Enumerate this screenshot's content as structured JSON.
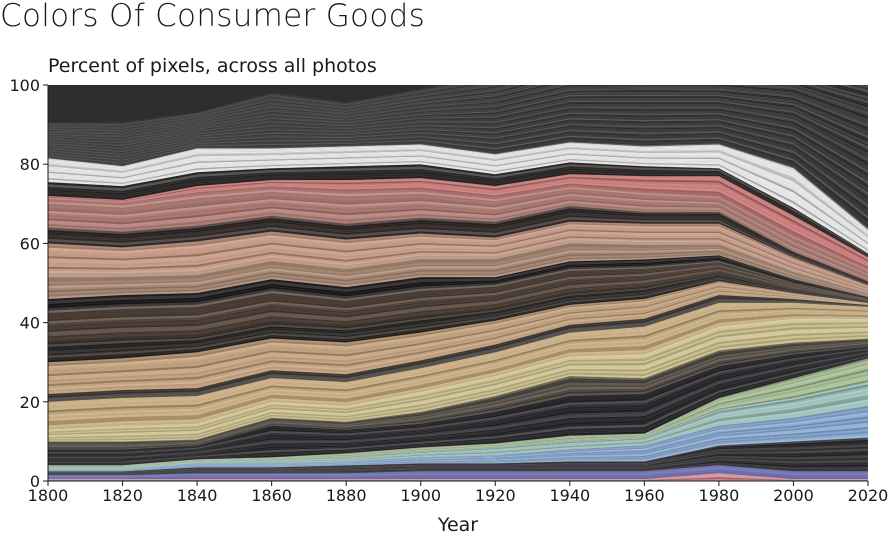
{
  "chart_data": {
    "type": "area",
    "stacked": true,
    "title": "Colors Of Consumer Goods",
    "subtitle": "Percent of pixels, across all photos",
    "xlabel": "Year",
    "ylabel": "",
    "x": [
      1800,
      1820,
      1840,
      1860,
      1880,
      1900,
      1920,
      1940,
      1960,
      1980,
      2000,
      2020
    ],
    "xticks": [
      "1800",
      "1820",
      "1840",
      "1860",
      "1880",
      "1900",
      "1920",
      "1940",
      "1960",
      "1980",
      "2000",
      "2020"
    ],
    "yticks": [
      "0",
      "20",
      "40",
      "60",
      "80",
      "100"
    ],
    "xlim": [
      1800,
      2020
    ],
    "ylim": [
      0,
      100
    ],
    "grid": false,
    "legend": "none",
    "bands": [
      {
        "color": "#d98a92",
        "values": [
          0.5,
          0.5,
          0.5,
          0.5,
          0.5,
          0.5,
          0.5,
          0.5,
          0.5,
          2,
          0.5,
          0.5
        ]
      },
      {
        "color": "#7a7dbf",
        "values": [
          1,
          1,
          1.5,
          1.5,
          1.5,
          2,
          2,
          2,
          2,
          2,
          2,
          2
        ]
      },
      {
        "color": "#2c2c2e",
        "values": [
          1,
          1,
          1.5,
          1.5,
          2,
          2,
          2,
          2.5,
          2.5,
          5,
          7.5,
          8.5
        ]
      },
      {
        "color": "#86a9d4",
        "values": [
          0.5,
          0.5,
          1,
          1,
          1,
          1.5,
          2,
          3,
          4,
          5,
          6,
          8
        ]
      },
      {
        "color": "#9ec5bd",
        "values": [
          0.5,
          0.5,
          0.5,
          1,
          1,
          1.5,
          2,
          2,
          2,
          4,
          5,
          6
        ]
      },
      {
        "color": "#a6bf94",
        "values": [
          0.5,
          0.5,
          0.5,
          0.5,
          1,
          1,
          1,
          1.5,
          1,
          3,
          5,
          6
        ]
      },
      {
        "color": "#26262a",
        "values": [
          4,
          4,
          3.5,
          8,
          6,
          6,
          8,
          10,
          10,
          8,
          6,
          3
        ]
      },
      {
        "color": "#504a40",
        "values": [
          2,
          2,
          1.5,
          2,
          2,
          3,
          4,
          5,
          4,
          4,
          3,
          2
        ]
      },
      {
        "color": "#cfc38f",
        "values": [
          3,
          4,
          4,
          4,
          4,
          5,
          5,
          5,
          6,
          6,
          6,
          5
        ]
      },
      {
        "color": "#c9ad80",
        "values": [
          7,
          7,
          7,
          6,
          6,
          6,
          6,
          6,
          7,
          6,
          4,
          3
        ]
      },
      {
        "color": "#3a3632",
        "values": [
          2,
          2,
          2,
          2,
          2,
          2,
          2,
          2,
          2,
          2,
          1,
          0.5
        ]
      },
      {
        "color": "#c5a27d",
        "values": [
          8,
          8,
          9,
          8,
          8,
          7,
          6,
          5,
          5,
          3.5,
          1.5,
          0.5
        ]
      },
      {
        "color": "#2a2622",
        "values": [
          5,
          5,
          4,
          4,
          4,
          4,
          3,
          3,
          3,
          2,
          1,
          0.5
        ]
      },
      {
        "color": "#4a3c32",
        "values": [
          8,
          8,
          8,
          8,
          7,
          7,
          6,
          6,
          5,
          3,
          1.5,
          0.5
        ]
      },
      {
        "color": "#1e1c1c",
        "values": [
          3,
          3,
          3,
          3,
          3,
          3,
          2,
          2,
          2,
          1.5,
          1,
          0.5
        ]
      },
      {
        "color": "#a88671",
        "values": [
          6,
          5,
          5,
          5,
          5,
          5,
          5,
          5,
          4,
          3,
          2,
          1
        ]
      },
      {
        "color": "#c89a84",
        "values": [
          8,
          7,
          8,
          7,
          7,
          6,
          5,
          5,
          5,
          5,
          3.5,
          2
        ]
      },
      {
        "color": "#302826",
        "values": [
          4,
          4,
          4,
          4,
          4,
          4,
          4,
          4,
          3,
          3,
          1.5,
          1
        ]
      },
      {
        "color": "#b07a72",
        "values": [
          7,
          7,
          8,
          7,
          8,
          7,
          6,
          5,
          5,
          4,
          4,
          3
        ]
      },
      {
        "color": "#c97876",
        "values": [
          1,
          1,
          2,
          2,
          3,
          3,
          3,
          3,
          4,
          5,
          5,
          3
        ]
      },
      {
        "color": "#2c2828",
        "values": [
          3.5,
          3.5,
          3.5,
          3,
          3.5,
          3.5,
          3,
          3,
          2.5,
          2,
          2,
          1
        ]
      },
      {
        "color": "#e8e8e8",
        "values": [
          6,
          5,
          6,
          5,
          5,
          5,
          5,
          5,
          5,
          6,
          10,
          6
        ]
      },
      {
        "color": "#323232",
        "values": [
          9,
          11,
          9,
          14,
          11,
          14,
          20,
          22,
          24,
          23,
          30,
          43.5
        ]
      }
    ]
  }
}
